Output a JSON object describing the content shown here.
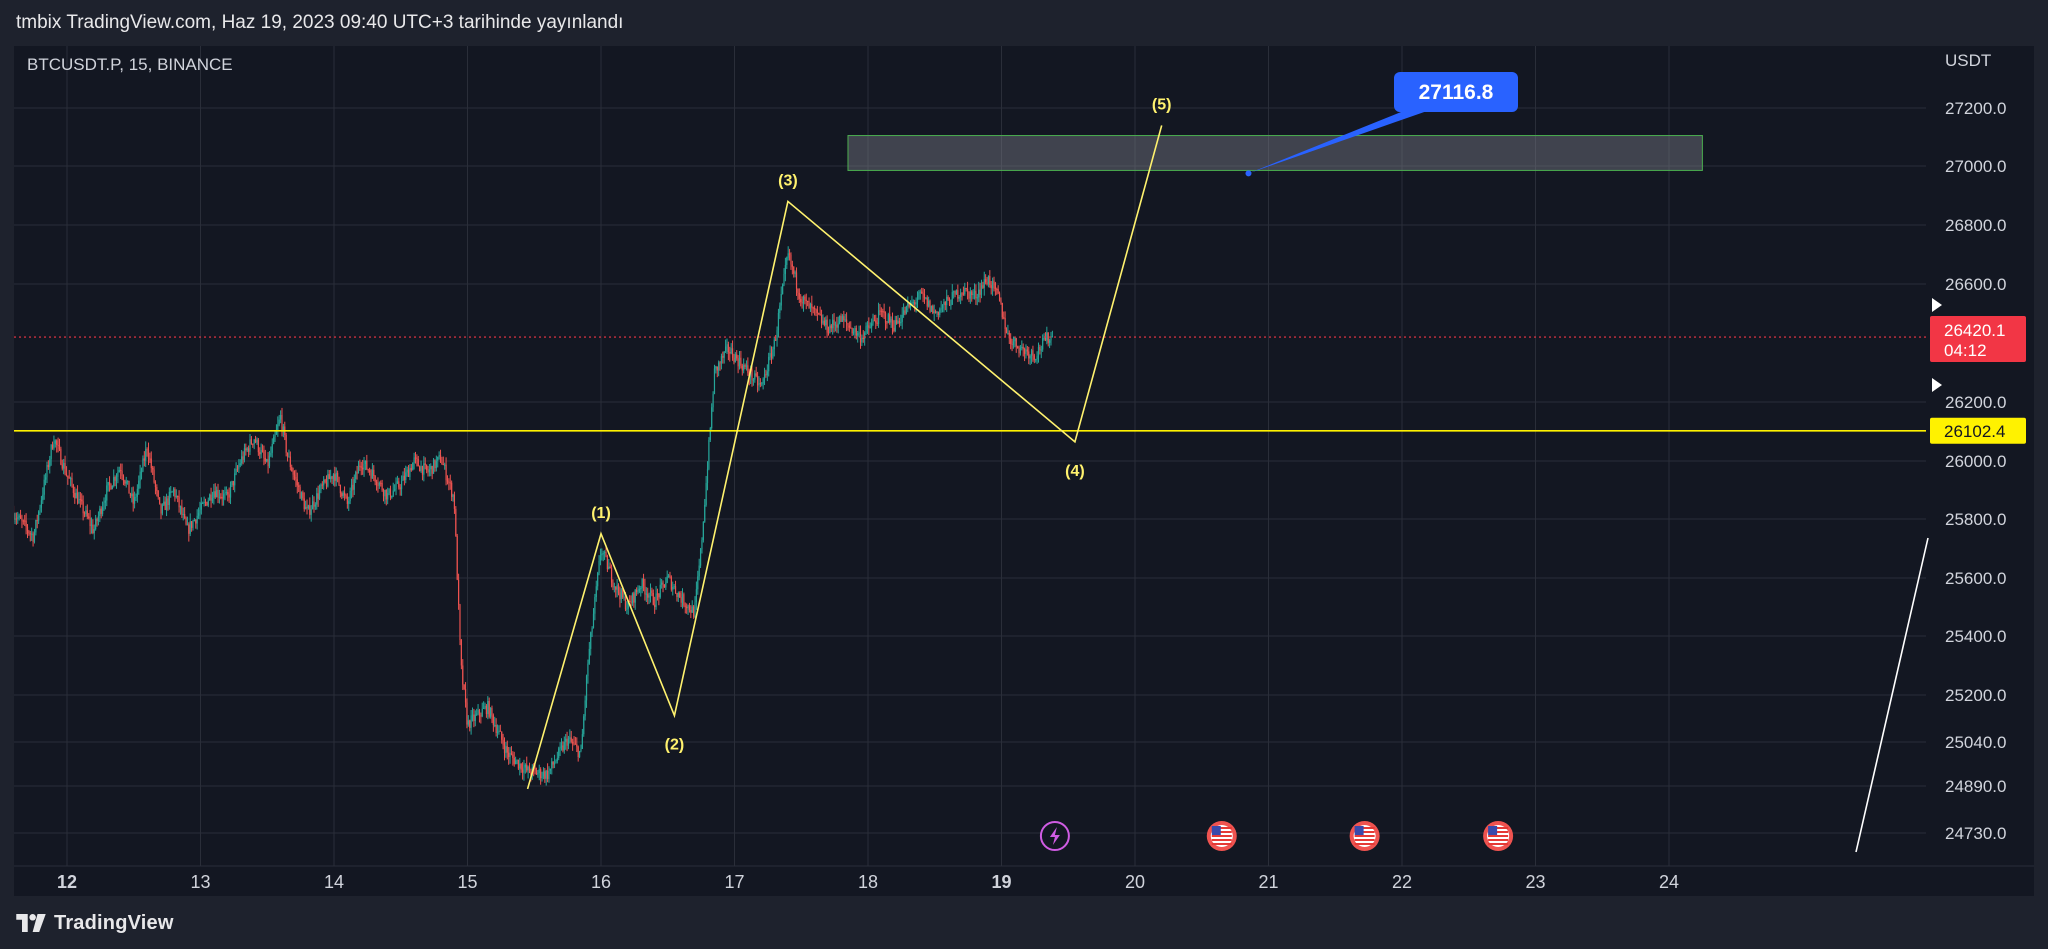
{
  "header": {
    "publish_line": "tmbix TradingView.com, Haz 19, 2023 09:40 UTC+3 tarihinde yayınlandı"
  },
  "chart": {
    "symbol_line": "BTCUSDT.P, 15, BINANCE",
    "currency": "USDT"
  },
  "price_badges": {
    "last_price": "26420.1",
    "countdown": "04:12",
    "level": "26102.4",
    "target_callout": "27116.8",
    "last_price_color": "#f23645",
    "level_color": "#fff200",
    "callout_color": "#2962ff"
  },
  "wave_labels": [
    "(1)",
    "(2)",
    "(3)",
    "(4)",
    "(5)"
  ],
  "events": {
    "icons": [
      "lightning-icon",
      "us-flag-icon",
      "us-flag-icon",
      "us-flag-icon"
    ]
  },
  "footer": {
    "brand": "TradingView"
  },
  "chart_data": {
    "type": "candlestick",
    "x_tick_labels": [
      "12",
      "13",
      "14",
      "15",
      "16",
      "17",
      "18",
      "19",
      "20",
      "21",
      "22",
      "23",
      "24"
    ],
    "x_bold_ticks": [
      "12",
      "19"
    ],
    "y_tick_labels": [
      "27200.0",
      "27000.0",
      "26800.0",
      "26600.0",
      "26200.0",
      "26000.0",
      "25800.0",
      "25600.0",
      "25400.0",
      "25200.0",
      "25040.0",
      "24890.0",
      "24730.0"
    ],
    "y_tick_values": [
      27200,
      27000,
      26800,
      26600,
      26200,
      26000,
      25800,
      25600,
      25400,
      25200,
      25040,
      24890,
      24730
    ],
    "ohlc_path": [
      [
        11.6,
        25820
      ],
      [
        11.75,
        25740
      ],
      [
        11.9,
        26080
      ],
      [
        12.0,
        25950
      ],
      [
        12.1,
        25850
      ],
      [
        12.2,
        25760
      ],
      [
        12.3,
        25900
      ],
      [
        12.4,
        25980
      ],
      [
        12.5,
        25850
      ],
      [
        12.6,
        26050
      ],
      [
        12.7,
        25820
      ],
      [
        12.8,
        25900
      ],
      [
        12.9,
        25760
      ],
      [
        13.0,
        25830
      ],
      [
        13.1,
        25900
      ],
      [
        13.2,
        25870
      ],
      [
        13.3,
        26000
      ],
      [
        13.4,
        26080
      ],
      [
        13.5,
        25980
      ],
      [
        13.6,
        26150
      ],
      [
        13.65,
        26020
      ],
      [
        13.7,
        25950
      ],
      [
        13.8,
        25820
      ],
      [
        13.9,
        25900
      ],
      [
        14.0,
        25960
      ],
      [
        14.1,
        25850
      ],
      [
        14.2,
        26000
      ],
      [
        14.3,
        25950
      ],
      [
        14.4,
        25880
      ],
      [
        14.5,
        25920
      ],
      [
        14.6,
        26000
      ],
      [
        14.7,
        25960
      ],
      [
        14.8,
        26010
      ],
      [
        14.9,
        25870
      ],
      [
        14.95,
        25300
      ],
      [
        15.0,
        25100
      ],
      [
        15.15,
        25160
      ],
      [
        15.3,
        25000
      ],
      [
        15.45,
        24940
      ],
      [
        15.6,
        24930
      ],
      [
        15.75,
        25050
      ],
      [
        15.85,
        25000
      ],
      [
        15.9,
        25300
      ],
      [
        15.95,
        25500
      ],
      [
        16.0,
        25700
      ],
      [
        16.1,
        25580
      ],
      [
        16.2,
        25500
      ],
      [
        16.3,
        25580
      ],
      [
        16.4,
        25520
      ],
      [
        16.5,
        25600
      ],
      [
        16.6,
        25530
      ],
      [
        16.7,
        25480
      ],
      [
        16.75,
        25700
      ],
      [
        16.8,
        26000
      ],
      [
        16.85,
        26300
      ],
      [
        16.95,
        26380
      ],
      [
        17.05,
        26330
      ],
      [
        17.2,
        26250
      ],
      [
        17.3,
        26400
      ],
      [
        17.4,
        26700
      ],
      [
        17.5,
        26550
      ],
      [
        17.6,
        26500
      ],
      [
        17.7,
        26450
      ],
      [
        17.8,
        26480
      ],
      [
        17.95,
        26420
      ],
      [
        18.1,
        26500
      ],
      [
        18.2,
        26460
      ],
      [
        18.3,
        26520
      ],
      [
        18.4,
        26560
      ],
      [
        18.5,
        26500
      ],
      [
        18.6,
        26540
      ],
      [
        18.7,
        26580
      ],
      [
        18.8,
        26560
      ],
      [
        18.9,
        26620
      ],
      [
        18.98,
        26550
      ],
      [
        19.05,
        26420
      ],
      [
        19.15,
        26380
      ],
      [
        19.25,
        26360
      ],
      [
        19.35,
        26420
      ],
      [
        19.39,
        26420
      ]
    ],
    "elliott_wave": {
      "points": [
        {
          "label": "",
          "x": 15.45,
          "y": 24880
        },
        {
          "label": "(1)",
          "x": 16.0,
          "y": 25750
        },
        {
          "label": "(2)",
          "x": 16.55,
          "y": 25130
        },
        {
          "label": "(3)",
          "x": 17.4,
          "y": 26880
        },
        {
          "label": "(4)",
          "x": 19.55,
          "y": 26065
        },
        {
          "label": "(5)",
          "x": 20.2,
          "y": 27140
        }
      ]
    },
    "horizontal_level": 26102.4,
    "last_price": 26420.1,
    "target_zone": {
      "x_from": 17.85,
      "x_to": 24.25,
      "y_from": 26985,
      "y_to": 27105
    },
    "target_price": 27116.8,
    "legend": "none",
    "grid": true
  }
}
